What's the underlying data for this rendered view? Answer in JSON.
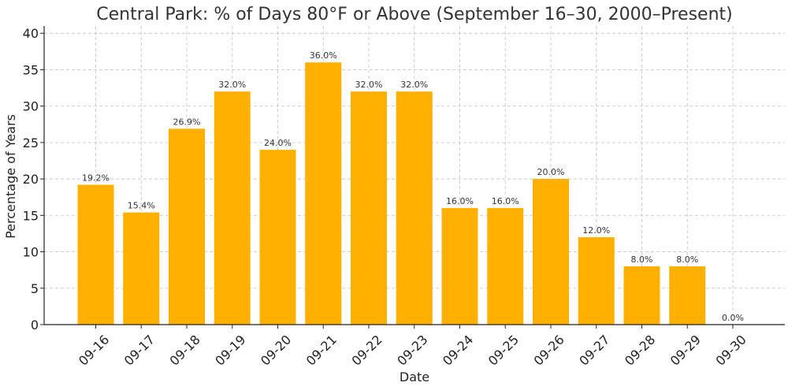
{
  "chart_data": {
    "type": "bar",
    "title": "Central Park: % of Days 80°F or Above (September 16–30, 2000–Present)",
    "xlabel": "Date",
    "ylabel": "Percentage of Years",
    "categories": [
      "09-16",
      "09-17",
      "09-18",
      "09-19",
      "09-20",
      "09-21",
      "09-22",
      "09-23",
      "09-24",
      "09-25",
      "09-26",
      "09-27",
      "09-28",
      "09-29",
      "09-30"
    ],
    "values": [
      19.2,
      15.4,
      26.9,
      32.0,
      24.0,
      36.0,
      32.0,
      32.0,
      16.0,
      16.0,
      20.0,
      12.0,
      8.0,
      8.0,
      0.0
    ],
    "data_labels": [
      "19.2%",
      "15.4%",
      "26.9%",
      "32.0%",
      "24.0%",
      "36.0%",
      "32.0%",
      "32.0%",
      "16.0%",
      "16.0%",
      "20.0%",
      "12.0%",
      "8.0%",
      "8.0%",
      "0.0%"
    ],
    "ylim": [
      0,
      41
    ],
    "yticks": [
      0,
      5,
      10,
      15,
      20,
      25,
      30,
      35,
      40
    ],
    "grid": true,
    "bar_color": "#FFB000"
  }
}
